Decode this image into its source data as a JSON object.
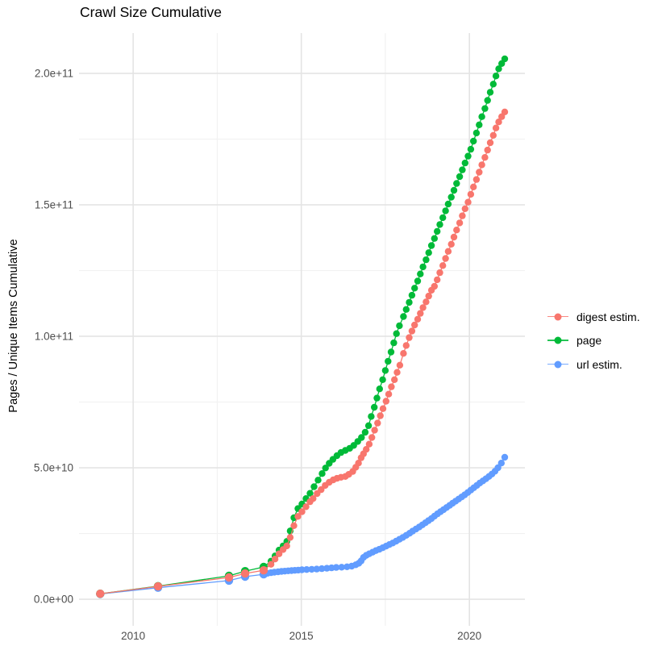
{
  "page": {
    "title": "Crawl Size Cumulative"
  },
  "chart_data": {
    "type": "scatter",
    "title": "Crawl Size Cumulative",
    "xlabel": "",
    "ylabel": "Pages / Unique Items Cumulative",
    "grid": "on",
    "legend_position": "right",
    "colors": {
      "digest": "#F8766D",
      "page": "#00BA38",
      "url": "#619CFF",
      "grid_major": "#E4E4E4",
      "grid_minor": "#F1F1F1",
      "tick_label": "#4D4D4D",
      "text": "#000000",
      "background": "#FFFFFF"
    },
    "x_axis": {
      "domain": [
        2008.39,
        2021.65
      ],
      "major_ticks": [
        2010,
        2015,
        2020
      ],
      "tick_labels": [
        "2010",
        "2015",
        "2020"
      ],
      "minor_ticks": [
        2012.5,
        2017.5
      ]
    },
    "y_axis": {
      "unit_multiplier": 1000000000.0,
      "domain_e9": [
        -10.1,
        215.3
      ],
      "major_ticks_e9": [
        0,
        50,
        100,
        150,
        200
      ],
      "tick_labels": [
        "0.0e+00",
        "5.0e+10",
        "1.0e+11",
        "1.5e+11",
        "2.0e+11"
      ],
      "minor_ticks_e9": [
        25,
        75,
        125,
        175
      ]
    },
    "legend": [
      {
        "id": "digest",
        "label": "digest estim.",
        "color": "#F8766D"
      },
      {
        "id": "page",
        "label": "page",
        "color": "#00BA38"
      },
      {
        "id": "url",
        "label": "url estim.",
        "color": "#619CFF"
      }
    ],
    "series": [
      {
        "id": "url",
        "name": "url estim.",
        "color": "#619CFF",
        "points_year_e9": [
          [
            2009.02,
            2.0
          ],
          [
            2010.74,
            4.4
          ],
          [
            2012.85,
            7.1
          ],
          [
            2013.33,
            8.6
          ],
          [
            2013.88,
            9.5
          ],
          [
            2014.0,
            9.9
          ],
          [
            2014.1,
            10.1
          ],
          [
            2014.2,
            10.3
          ],
          [
            2014.31,
            10.45
          ],
          [
            2014.41,
            10.6
          ],
          [
            2014.51,
            10.7
          ],
          [
            2014.61,
            10.8
          ],
          [
            2014.71,
            10.9
          ],
          [
            2014.81,
            11.0
          ],
          [
            2014.91,
            11.1
          ],
          [
            2015.02,
            11.2
          ],
          [
            2015.16,
            11.3
          ],
          [
            2015.31,
            11.4
          ],
          [
            2015.46,
            11.5
          ],
          [
            2015.61,
            11.65
          ],
          [
            2015.76,
            11.8
          ],
          [
            2015.9,
            11.95
          ],
          [
            2016.04,
            12.1
          ],
          [
            2016.2,
            12.2
          ],
          [
            2016.36,
            12.35
          ],
          [
            2016.5,
            12.6
          ],
          [
            2016.62,
            13.1
          ],
          [
            2016.71,
            13.7
          ],
          [
            2016.78,
            14.6
          ],
          [
            2016.85,
            15.9
          ],
          [
            2016.93,
            16.7
          ],
          [
            2017.02,
            17.3
          ],
          [
            2017.12,
            17.9
          ],
          [
            2017.22,
            18.5
          ],
          [
            2017.32,
            19.0
          ],
          [
            2017.42,
            19.6
          ],
          [
            2017.52,
            20.2
          ],
          [
            2017.62,
            20.8
          ],
          [
            2017.72,
            21.4
          ],
          [
            2017.82,
            22.1
          ],
          [
            2017.92,
            22.8
          ],
          [
            2018.02,
            23.5
          ],
          [
            2018.12,
            24.3
          ],
          [
            2018.22,
            25.1
          ],
          [
            2018.31,
            25.9
          ],
          [
            2018.41,
            26.7
          ],
          [
            2018.51,
            27.5
          ],
          [
            2018.6,
            28.3
          ],
          [
            2018.69,
            29.1
          ],
          [
            2018.78,
            29.9
          ],
          [
            2018.87,
            30.7
          ],
          [
            2018.96,
            31.6
          ],
          [
            2019.05,
            32.5
          ],
          [
            2019.14,
            33.3
          ],
          [
            2019.23,
            34.1
          ],
          [
            2019.32,
            34.9
          ],
          [
            2019.41,
            35.7
          ],
          [
            2019.5,
            36.5
          ],
          [
            2019.59,
            37.3
          ],
          [
            2019.68,
            38.1
          ],
          [
            2019.77,
            38.9
          ],
          [
            2019.86,
            39.7
          ],
          [
            2019.95,
            40.6
          ],
          [
            2020.04,
            41.5
          ],
          [
            2020.13,
            42.4
          ],
          [
            2020.22,
            43.3
          ],
          [
            2020.31,
            44.2
          ],
          [
            2020.4,
            45.0
          ],
          [
            2020.49,
            45.8
          ],
          [
            2020.58,
            46.7
          ],
          [
            2020.67,
            47.6
          ],
          [
            2020.76,
            48.7
          ],
          [
            2020.85,
            50.0
          ],
          [
            2020.95,
            51.8
          ],
          [
            2021.05,
            54.0
          ]
        ]
      },
      {
        "id": "page",
        "name": "page",
        "color": "#00BA38",
        "points_year_e9": [
          [
            2009.02,
            2.1
          ],
          [
            2010.74,
            5.0
          ],
          [
            2012.85,
            8.9
          ],
          [
            2013.33,
            10.7
          ],
          [
            2013.88,
            12.3
          ],
          [
            2014.1,
            14.5
          ],
          [
            2014.22,
            16.5
          ],
          [
            2014.34,
            18.7
          ],
          [
            2014.46,
            20.3
          ],
          [
            2014.57,
            22.0
          ],
          [
            2014.67,
            26.0
          ],
          [
            2014.78,
            31.0
          ],
          [
            2014.9,
            34.5
          ],
          [
            2015.02,
            36.2
          ],
          [
            2015.14,
            38.3
          ],
          [
            2015.26,
            40.3
          ],
          [
            2015.38,
            42.8
          ],
          [
            2015.5,
            45.3
          ],
          [
            2015.62,
            47.8
          ],
          [
            2015.72,
            49.9
          ],
          [
            2015.83,
            51.7
          ],
          [
            2015.94,
            53.2
          ],
          [
            2016.06,
            54.6
          ],
          [
            2016.18,
            55.8
          ],
          [
            2016.31,
            56.6
          ],
          [
            2016.44,
            57.4
          ],
          [
            2016.56,
            58.5
          ],
          [
            2016.68,
            60.0
          ],
          [
            2016.79,
            61.5
          ],
          [
            2016.9,
            63.5
          ],
          [
            2017.0,
            66.0
          ],
          [
            2017.08,
            69.5
          ],
          [
            2017.17,
            73.0
          ],
          [
            2017.25,
            76.5
          ],
          [
            2017.33,
            80.0
          ],
          [
            2017.42,
            83.5
          ],
          [
            2017.5,
            87.0
          ],
          [
            2017.58,
            90.5
          ],
          [
            2017.67,
            94.0
          ],
          [
            2017.75,
            97.5
          ],
          [
            2017.83,
            101.0
          ],
          [
            2017.92,
            104.0
          ],
          [
            2018.04,
            107.5
          ],
          [
            2018.12,
            110.2
          ],
          [
            2018.21,
            112.9
          ],
          [
            2018.29,
            115.6
          ],
          [
            2018.37,
            118.3
          ],
          [
            2018.46,
            121.0
          ],
          [
            2018.54,
            123.7
          ],
          [
            2018.62,
            126.4
          ],
          [
            2018.71,
            129.1
          ],
          [
            2018.79,
            131.8
          ],
          [
            2018.87,
            134.5
          ],
          [
            2018.96,
            137.2
          ],
          [
            2019.04,
            139.9
          ],
          [
            2019.12,
            142.5
          ],
          [
            2019.21,
            145.1
          ],
          [
            2019.29,
            147.7
          ],
          [
            2019.37,
            150.3
          ],
          [
            2019.46,
            152.9
          ],
          [
            2019.54,
            155.5
          ],
          [
            2019.62,
            158.1
          ],
          [
            2019.71,
            160.7
          ],
          [
            2019.79,
            163.3
          ],
          [
            2019.87,
            165.9
          ],
          [
            2019.96,
            168.5
          ],
          [
            2020.04,
            171.1
          ],
          [
            2020.12,
            174.2
          ],
          [
            2020.21,
            177.3
          ],
          [
            2020.29,
            180.4
          ],
          [
            2020.37,
            183.5
          ],
          [
            2020.46,
            186.6
          ],
          [
            2020.54,
            189.7
          ],
          [
            2020.62,
            192.8
          ],
          [
            2020.71,
            195.9
          ],
          [
            2020.79,
            199.0
          ],
          [
            2020.87,
            201.7
          ],
          [
            2020.96,
            203.7
          ],
          [
            2021.05,
            205.5
          ]
        ]
      },
      {
        "id": "digest",
        "name": "digest estim.",
        "color": "#F8766D",
        "points_year_e9": [
          [
            2009.02,
            2.1
          ],
          [
            2010.74,
            4.9
          ],
          [
            2012.85,
            8.3
          ],
          [
            2013.33,
            9.8
          ],
          [
            2013.88,
            11.0
          ],
          [
            2014.1,
            13.3
          ],
          [
            2014.22,
            15.3
          ],
          [
            2014.34,
            17.3
          ],
          [
            2014.46,
            18.9
          ],
          [
            2014.57,
            20.3
          ],
          [
            2014.67,
            23.5
          ],
          [
            2014.78,
            28.0
          ],
          [
            2014.9,
            31.5
          ],
          [
            2015.02,
            33.3
          ],
          [
            2015.14,
            35.2
          ],
          [
            2015.26,
            37.1
          ],
          [
            2015.35,
            38.3
          ],
          [
            2015.47,
            40.2
          ],
          [
            2015.59,
            41.7
          ],
          [
            2015.71,
            43.3
          ],
          [
            2015.83,
            44.5
          ],
          [
            2015.95,
            45.4
          ],
          [
            2016.06,
            46.0
          ],
          [
            2016.18,
            46.4
          ],
          [
            2016.31,
            46.7
          ],
          [
            2016.41,
            47.5
          ],
          [
            2016.53,
            48.6
          ],
          [
            2016.62,
            50.2
          ],
          [
            2016.7,
            51.8
          ],
          [
            2016.78,
            53.8
          ],
          [
            2016.85,
            55.3
          ],
          [
            2016.93,
            57.0
          ],
          [
            2017.02,
            59.0
          ],
          [
            2017.1,
            61.5
          ],
          [
            2017.18,
            64.3
          ],
          [
            2017.27,
            67.0
          ],
          [
            2017.35,
            69.8
          ],
          [
            2017.43,
            72.5
          ],
          [
            2017.52,
            75.3
          ],
          [
            2017.6,
            78.0
          ],
          [
            2017.68,
            80.8
          ],
          [
            2017.77,
            83.5
          ],
          [
            2017.85,
            86.3
          ],
          [
            2017.93,
            89.0
          ],
          [
            2018.04,
            93.5
          ],
          [
            2018.12,
            96.5
          ],
          [
            2018.21,
            99.5
          ],
          [
            2018.29,
            102.0
          ],
          [
            2018.37,
            104.3
          ],
          [
            2018.46,
            106.5
          ],
          [
            2018.54,
            108.7
          ],
          [
            2018.62,
            110.9
          ],
          [
            2018.71,
            113.1
          ],
          [
            2018.79,
            115.3
          ],
          [
            2018.87,
            117.5
          ],
          [
            2018.96,
            119.0
          ],
          [
            2019.04,
            121.5
          ],
          [
            2019.12,
            124.2
          ],
          [
            2019.21,
            126.9
          ],
          [
            2019.29,
            129.6
          ],
          [
            2019.37,
            132.3
          ],
          [
            2019.46,
            135.0
          ],
          [
            2019.54,
            137.7
          ],
          [
            2019.62,
            140.4
          ],
          [
            2019.71,
            143.1
          ],
          [
            2019.79,
            145.8
          ],
          [
            2019.87,
            148.5
          ],
          [
            2019.96,
            151.0
          ],
          [
            2020.04,
            154.0
          ],
          [
            2020.12,
            156.8
          ],
          [
            2020.21,
            159.6
          ],
          [
            2020.29,
            162.4
          ],
          [
            2020.37,
            165.2
          ],
          [
            2020.46,
            168.0
          ],
          [
            2020.54,
            170.8
          ],
          [
            2020.62,
            173.6
          ],
          [
            2020.71,
            176.4
          ],
          [
            2020.79,
            179.2
          ],
          [
            2020.87,
            181.5
          ],
          [
            2020.96,
            183.5
          ],
          [
            2021.05,
            185.3
          ]
        ]
      }
    ]
  }
}
